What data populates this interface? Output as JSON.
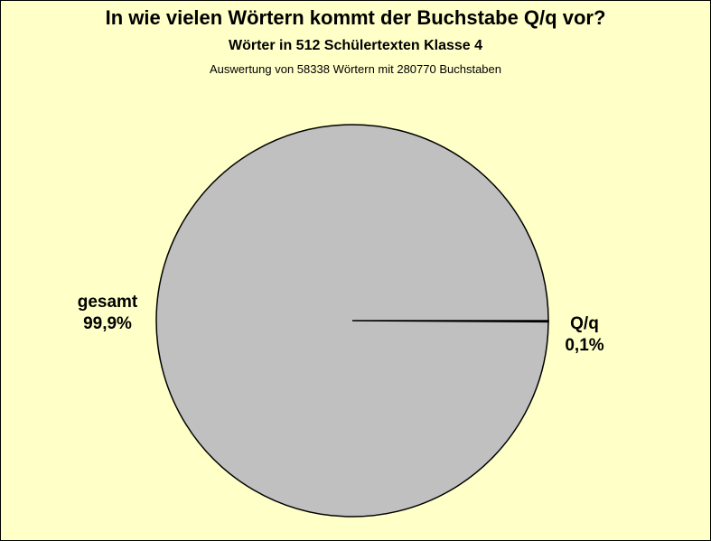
{
  "chart_data": {
    "type": "pie",
    "title": "In wie vielen Wörtern kommt der Buchstabe Q/q vor?",
    "subtitle": "Wörter in 512 Schülertexten Klasse 4",
    "subtitle2": "Auswertung von 58338 Wörtern mit 280770 Buchstaben",
    "slices": [
      {
        "name": "gesamt",
        "value": 99.9,
        "label_value": "99,9%",
        "color": "#C0C0C0"
      },
      {
        "name": "Q/q",
        "value": 0.1,
        "label_value": "0,1%",
        "color": "#C0C0C0"
      }
    ],
    "background_color": "#FFFFC8",
    "slice_border_color": "#000000"
  }
}
